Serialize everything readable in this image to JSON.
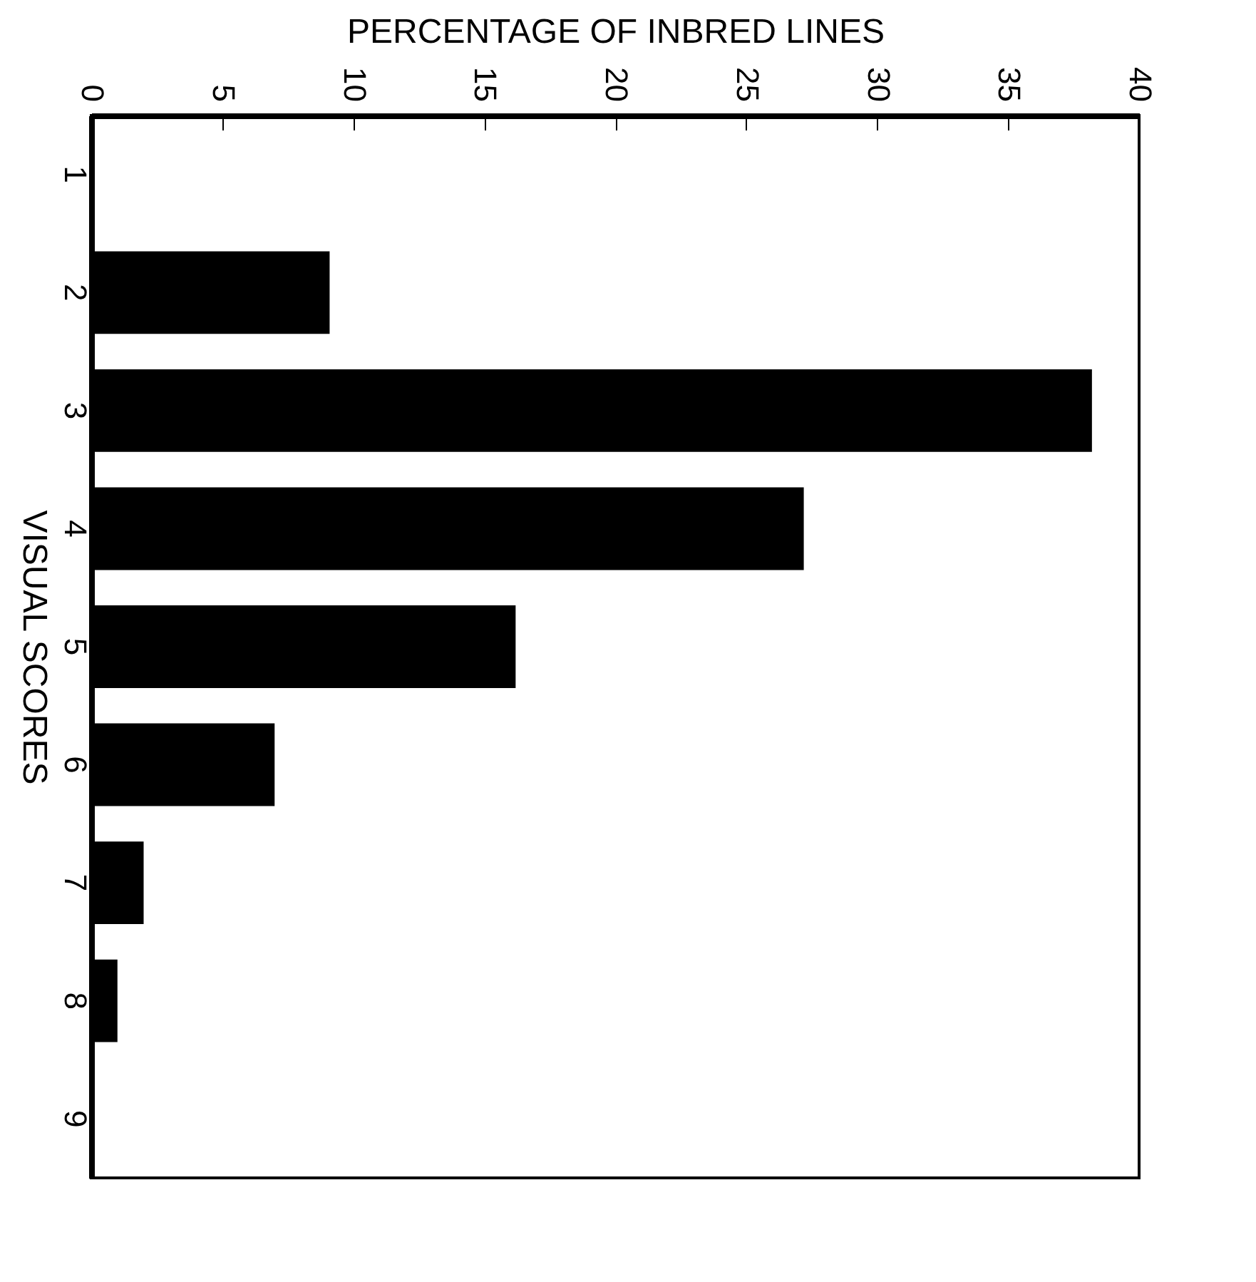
{
  "chart_data": {
    "type": "bar",
    "orientation": "horizontal",
    "xlabel": "PERCENTAGE OF INBRED LINES",
    "ylabel": "VISUAL SCORES",
    "categories": [
      "1",
      "2",
      "3",
      "4",
      "5",
      "6",
      "7",
      "8",
      "9"
    ],
    "values": [
      0,
      9.1,
      38.2,
      27.2,
      16.2,
      7.0,
      2.0,
      1.0,
      0
    ],
    "color": "#000000",
    "xlim": [
      0,
      40
    ],
    "xticks": [
      0,
      5,
      10,
      15,
      20,
      25,
      30,
      35,
      40
    ],
    "grid": false
  }
}
